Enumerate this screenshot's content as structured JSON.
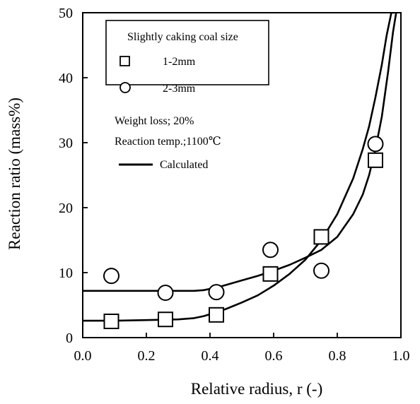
{
  "chart_data": {
    "type": "scatter",
    "xlabel": "Relative radius, r (-)",
    "ylabel": "Reaction ratio (mass%)",
    "xlim": [
      0.0,
      1.0
    ],
    "ylim": [
      0,
      50
    ],
    "x_ticks": [
      "0.0",
      "0.2",
      "0.4",
      "0.6",
      "0.8",
      "1.0"
    ],
    "y_ticks": [
      "0",
      "10",
      "20",
      "30",
      "40",
      "50"
    ],
    "grid": false,
    "legend_position": "top-left",
    "legend": {
      "title": "Slightly caking coal size",
      "annotations": [
        "Weight loss; 20%",
        "Reaction temp.;1100℃"
      ]
    },
    "series": [
      {
        "name": "1-2mm",
        "marker": "square",
        "x": [
          0.09,
          0.26,
          0.42,
          0.59,
          0.75,
          0.92
        ],
        "y": [
          2.5,
          2.8,
          3.5,
          9.8,
          15.5,
          27.3
        ]
      },
      {
        "name": "2-3mm",
        "marker": "circle",
        "x": [
          0.09,
          0.26,
          0.42,
          0.59,
          0.75,
          0.92
        ],
        "y": [
          9.5,
          6.9,
          7.0,
          13.5,
          10.3,
          29.8
        ]
      }
    ],
    "curves": [
      {
        "name": "Calculated",
        "x": [
          0.0,
          0.1,
          0.2,
          0.3,
          0.35,
          0.38,
          0.4,
          0.42,
          0.45,
          0.5,
          0.55,
          0.6,
          0.65,
          0.7,
          0.75,
          0.8,
          0.85,
          0.88,
          0.9,
          0.92,
          0.94,
          0.955,
          0.97,
          0.98
        ],
        "y": [
          2.6,
          2.6,
          2.7,
          2.8,
          3.0,
          3.3,
          3.6,
          3.9,
          4.4,
          5.4,
          6.5,
          8.0,
          9.8,
          12.0,
          15.0,
          19.0,
          24.5,
          29.0,
          32.5,
          37.0,
          42.0,
          46.5,
          50.0,
          50.0
        ]
      },
      {
        "name": "Calculated",
        "x": [
          0.0,
          0.1,
          0.2,
          0.3,
          0.35,
          0.38,
          0.4,
          0.42,
          0.45,
          0.5,
          0.55,
          0.6,
          0.65,
          0.7,
          0.75,
          0.8,
          0.85,
          0.88,
          0.9,
          0.92,
          0.94,
          0.96,
          0.975,
          0.985
        ],
        "y": [
          7.2,
          7.2,
          7.2,
          7.2,
          7.2,
          7.3,
          7.5,
          7.7,
          8.1,
          8.8,
          9.5,
          10.3,
          11.2,
          12.3,
          13.5,
          15.5,
          19.0,
          22.0,
          25.0,
          29.0,
          34.0,
          41.0,
          47.0,
          50.0
        ]
      }
    ]
  }
}
